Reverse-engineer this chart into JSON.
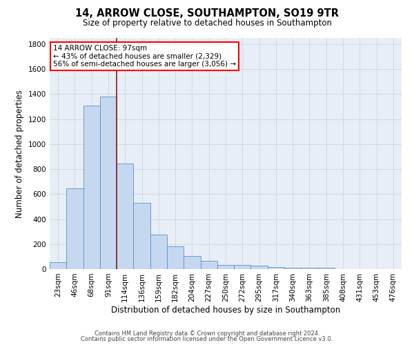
{
  "title": "14, ARROW CLOSE, SOUTHAMPTON, SO19 9TR",
  "subtitle": "Size of property relative to detached houses in Southampton",
  "xlabel": "Distribution of detached houses by size in Southampton",
  "ylabel": "Number of detached properties",
  "footer_line1": "Contains HM Land Registry data © Crown copyright and database right 2024.",
  "footer_line2": "Contains public sector information licensed under the Open Government Licence v3.0.",
  "annotation_title": "14 ARROW CLOSE: 97sqm",
  "annotation_line2": "← 43% of detached houses are smaller (2,329)",
  "annotation_line3": "56% of semi-detached houses are larger (3,056) →",
  "categories": [
    "23sqm",
    "46sqm",
    "68sqm",
    "91sqm",
    "114sqm",
    "136sqm",
    "159sqm",
    "182sqm",
    "204sqm",
    "227sqm",
    "250sqm",
    "272sqm",
    "295sqm",
    "317sqm",
    "340sqm",
    "363sqm",
    "385sqm",
    "408sqm",
    "431sqm",
    "453sqm",
    "476sqm"
  ],
  "values": [
    55,
    645,
    1310,
    1380,
    845,
    530,
    275,
    185,
    105,
    65,
    35,
    35,
    25,
    15,
    10,
    10,
    10,
    0,
    0,
    0,
    0
  ],
  "bar_color": "#c5d8f0",
  "bar_edge_color": "#5b8fc7",
  "grid_color": "#ccd9e8",
  "bg_color": "#e8eef5",
  "ylim": [
    0,
    1850
  ],
  "yticks": [
    0,
    200,
    400,
    600,
    800,
    1000,
    1200,
    1400,
    1600,
    1800
  ],
  "redline_index": 3,
  "title_fontsize": 10.5,
  "subtitle_fontsize": 8.5,
  "xlabel_fontsize": 8.5,
  "ylabel_fontsize": 8.5,
  "tick_fontsize": 7.5,
  "footer_fontsize": 6.0,
  "ann_fontsize": 7.5
}
